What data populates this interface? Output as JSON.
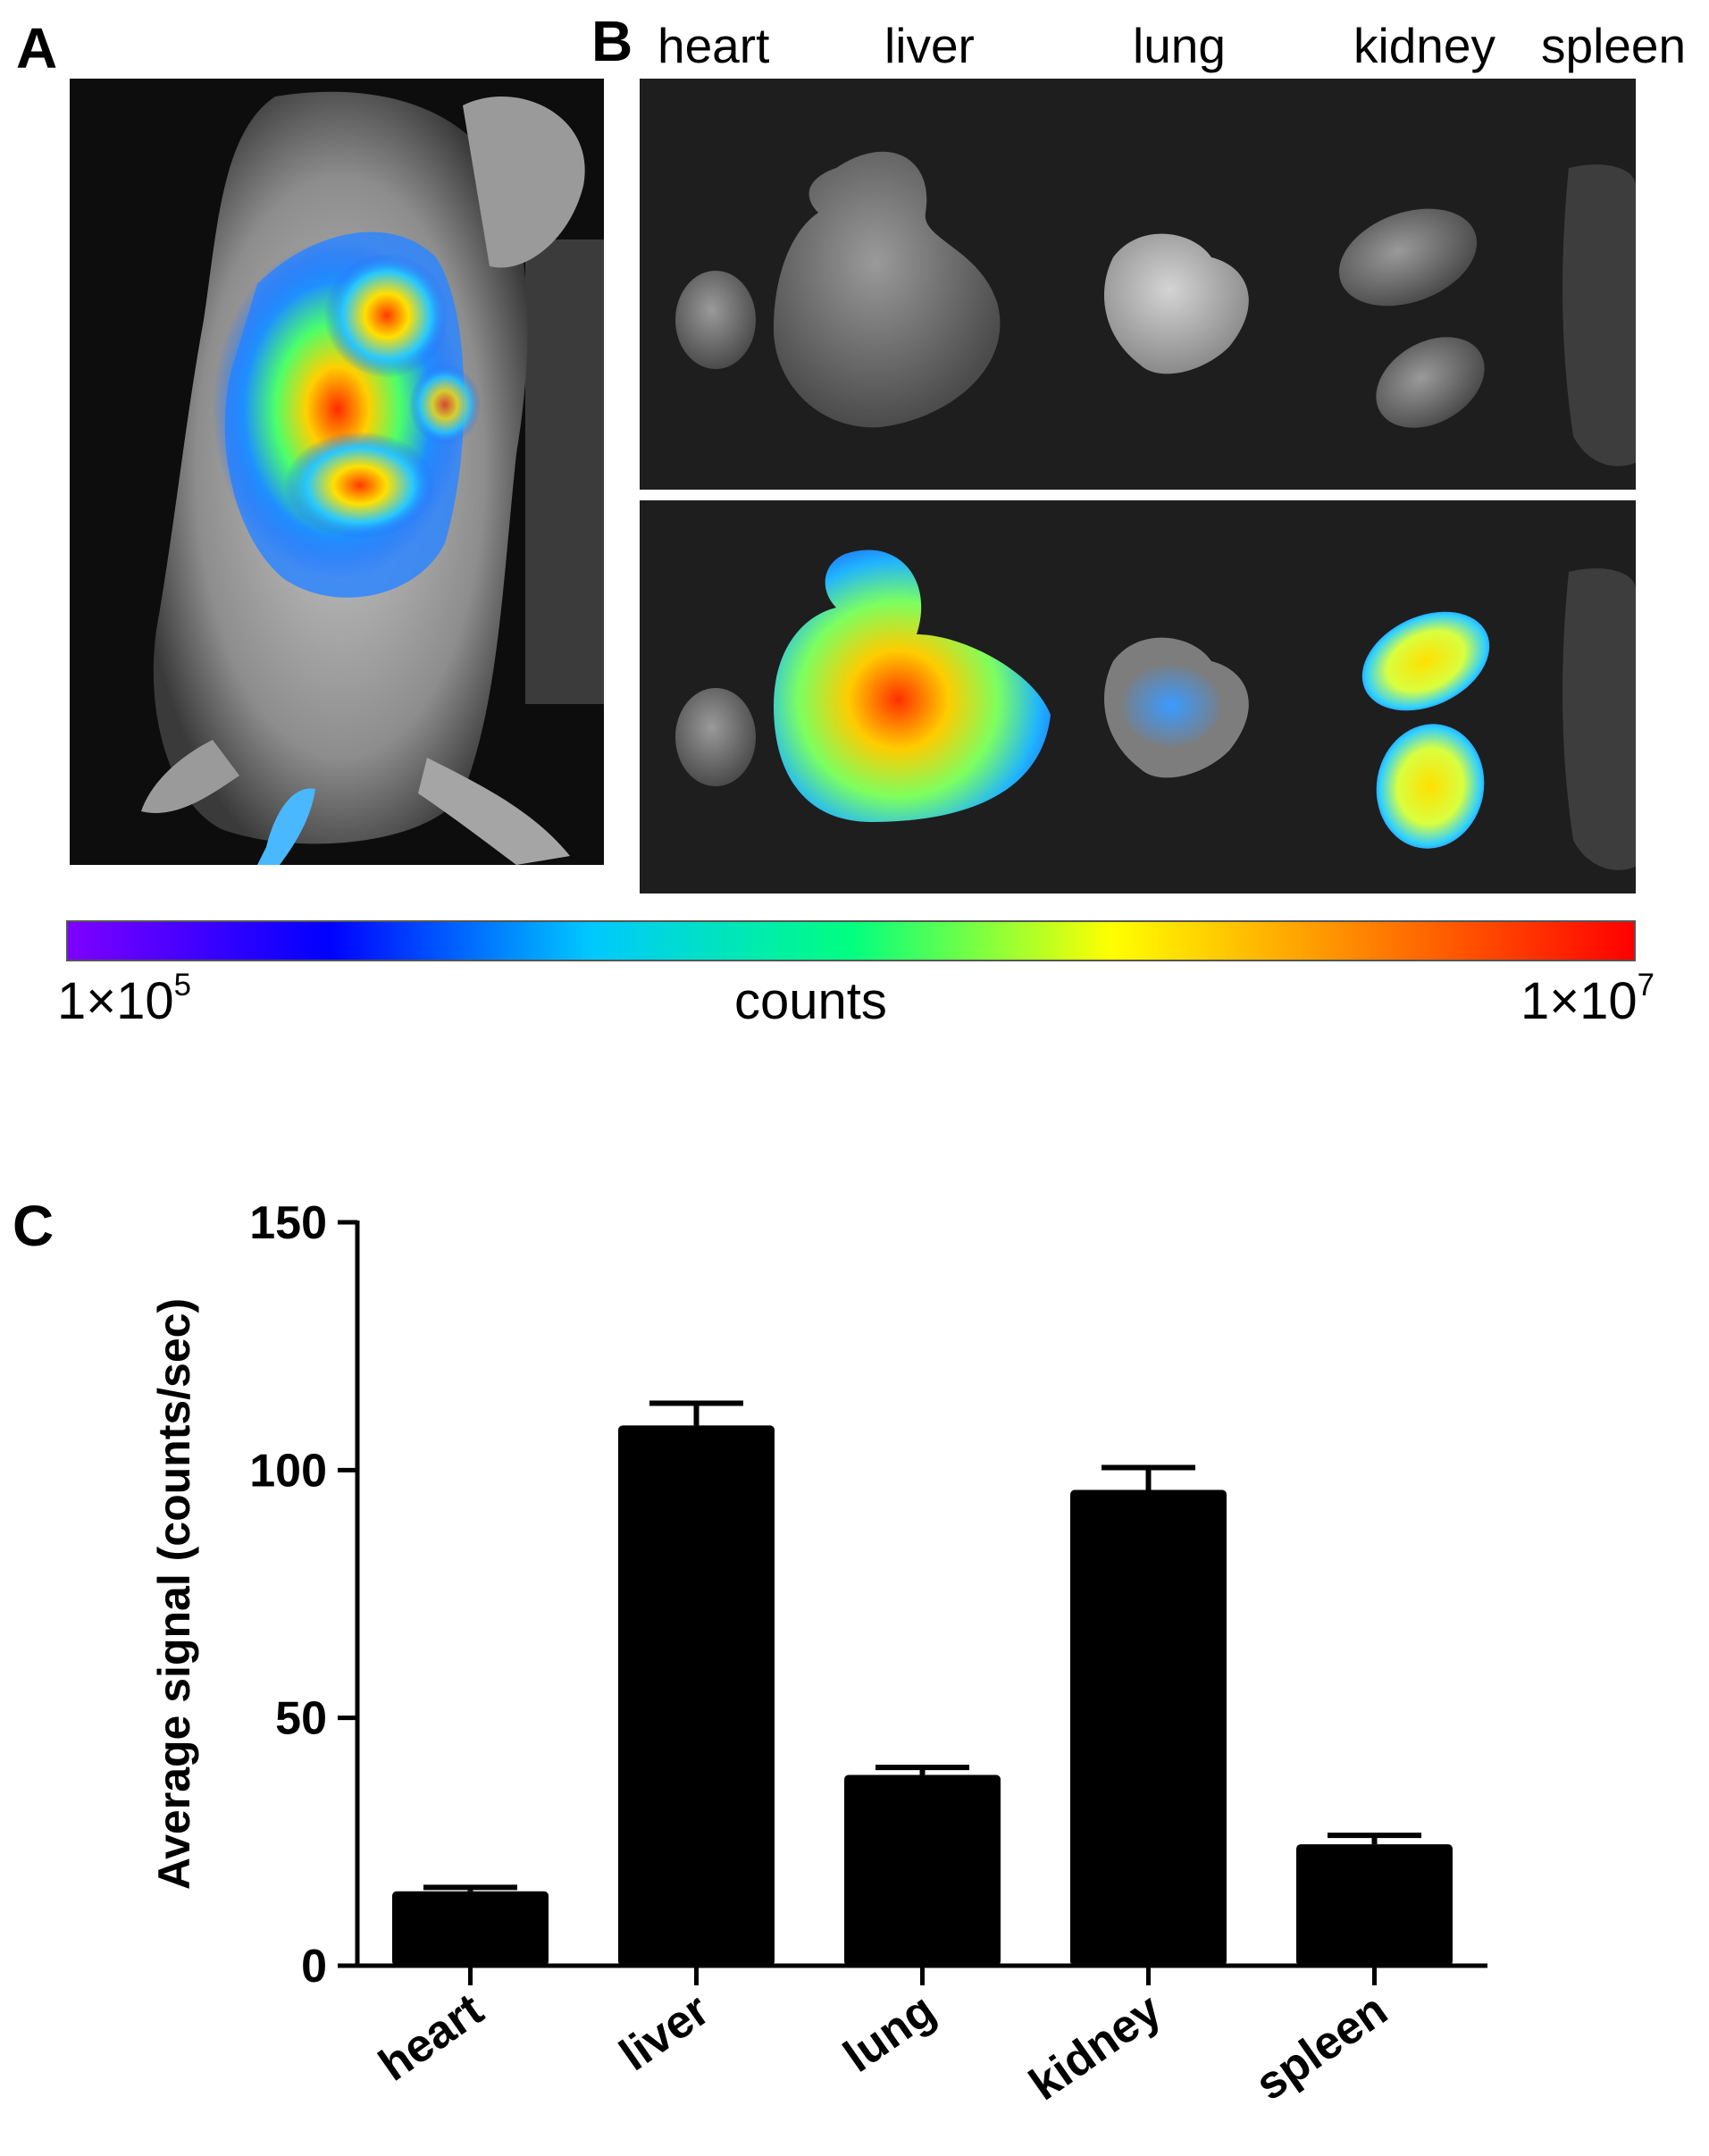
{
  "panels": {
    "a": {
      "letter": "A"
    },
    "b": {
      "letter": "B",
      "organ_labels": [
        "heart",
        "liver",
        "lung",
        "kidney",
        "spleen"
      ]
    },
    "c": {
      "letter": "C"
    }
  },
  "colorbar": {
    "min_label": "1×10",
    "min_exp": "5",
    "max_label": "1×10",
    "max_exp": "7",
    "title": "counts",
    "colors": [
      "#7f00ff",
      "#0000ff",
      "#00c8ff",
      "#00ff80",
      "#ffff00",
      "#ff8000",
      "#ff0000"
    ]
  },
  "chart_data": {
    "type": "bar",
    "categories": [
      "heart",
      "liver",
      "lung",
      "kidney",
      "spleen"
    ],
    "values": [
      15,
      109,
      38.5,
      96,
      24.5
    ],
    "errors": [
      0.8,
      4.5,
      1.5,
      4.5,
      1.8
    ],
    "ylabel": "Average signal (counts/sec)",
    "xlabel": "",
    "ylim": [
      0,
      150
    ],
    "yticks": [
      0,
      50,
      100,
      150
    ],
    "bar_color": "#000000",
    "grid": false
  }
}
